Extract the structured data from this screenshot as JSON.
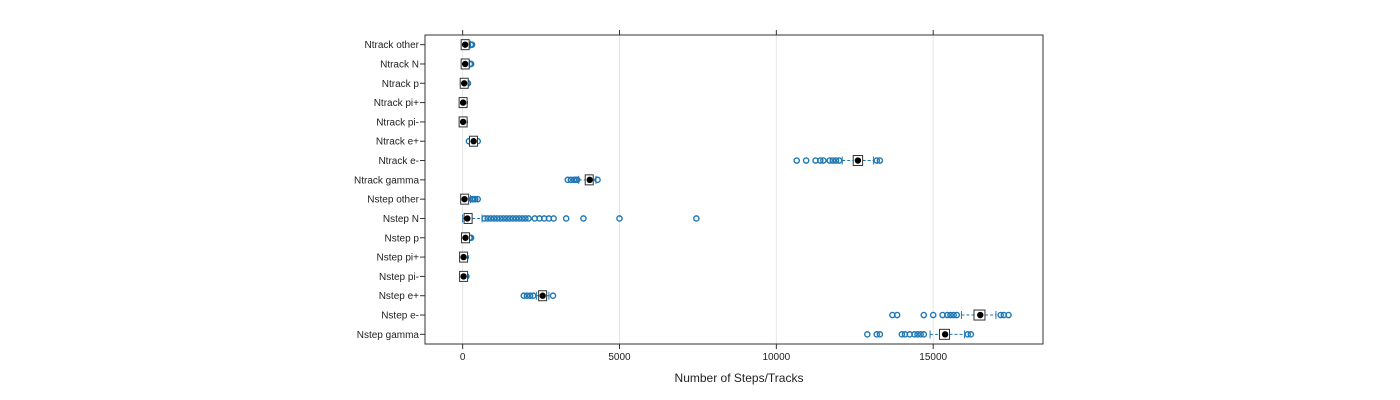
{
  "chart_data": {
    "type": "boxplot",
    "xlabel": "Number of Steps/Tracks",
    "xlim": [
      -1200,
      18500
    ],
    "xticks": [
      0,
      5000,
      10000,
      15000
    ],
    "xtick_labels": [
      "0",
      "5000",
      "10000",
      "15000"
    ],
    "grid": "vertical",
    "colors": {
      "point": "#1f77b4",
      "box": "#333333",
      "median": "#000000",
      "grid": "#e6e6e6",
      "frame": "#333333"
    },
    "categories": [
      "Ntrack other",
      "Ntrack N",
      "Ntrack p",
      "Ntrack pi+",
      "Ntrack pi-",
      "Ntrack e+",
      "Ntrack e-",
      "Ntrack gamma",
      "Nstep other",
      "Nstep N",
      "Nstep p",
      "Nstep pi+",
      "Nstep pi-",
      "Nstep e+",
      "Nstep e-",
      "Nstep gamma"
    ],
    "boxes": [
      {
        "category": "Ntrack other",
        "q1": 40,
        "median": 80,
        "q3": 120,
        "whisker_low": 0,
        "whisker_high": 250,
        "outliers": [
          260,
          280,
          300
        ]
      },
      {
        "category": "Ntrack N",
        "q1": 40,
        "median": 80,
        "q3": 120,
        "whisker_low": 0,
        "whisker_high": 220,
        "outliers": [
          230,
          250,
          270
        ]
      },
      {
        "category": "Ntrack p",
        "q1": 20,
        "median": 50,
        "q3": 80,
        "whisker_low": 0,
        "whisker_high": 140,
        "outliers": [
          150,
          170
        ]
      },
      {
        "category": "Ntrack pi+",
        "q1": 5,
        "median": 15,
        "q3": 25,
        "whisker_low": 0,
        "whisker_high": 50,
        "outliers": [
          60,
          70
        ]
      },
      {
        "category": "Ntrack pi-",
        "q1": 5,
        "median": 15,
        "q3": 25,
        "whisker_low": 0,
        "whisker_high": 50,
        "outliers": [
          60,
          70
        ]
      },
      {
        "category": "Ntrack e+",
        "q1": 300,
        "median": 350,
        "q3": 390,
        "whisker_low": 230,
        "whisker_high": 450,
        "outliers": [
          200,
          480
        ]
      },
      {
        "category": "Ntrack e-",
        "q1": 12450,
        "median": 12600,
        "q3": 12750,
        "whisker_low": 12100,
        "whisker_high": 13100,
        "outliers": [
          10650,
          10950,
          11250,
          11400,
          11500,
          11700,
          11800,
          11900,
          12000,
          13200,
          13300
        ]
      },
      {
        "category": "Ntrack gamma",
        "q1": 3950,
        "median": 4050,
        "q3": 4120,
        "whisker_low": 3700,
        "whisker_high": 4250,
        "outliers": [
          3350,
          3450,
          3550,
          3600,
          3650,
          4300
        ]
      },
      {
        "category": "Nstep other",
        "q1": 30,
        "median": 60,
        "q3": 100,
        "whisker_low": 0,
        "whisker_high": 250,
        "outliers": [
          300,
          350,
          400,
          480
        ]
      },
      {
        "category": "Nstep N",
        "q1": 50,
        "median": 150,
        "q3": 300,
        "whisker_low": 0,
        "whisker_high": 620,
        "outliers": [
          700,
          800,
          900,
          1000,
          1100,
          1200,
          1300,
          1400,
          1500,
          1600,
          1700,
          1800,
          1900,
          2000,
          2100,
          2300,
          2450,
          2600,
          2750,
          2900,
          3300,
          3850,
          5000,
          7450
        ]
      },
      {
        "category": "Nstep p",
        "q1": 40,
        "median": 90,
        "q3": 140,
        "whisker_low": 0,
        "whisker_high": 200,
        "outliers": [
          220,
          250,
          270
        ]
      },
      {
        "category": "Nstep pi+",
        "q1": 10,
        "median": 30,
        "q3": 50,
        "whisker_low": 0,
        "whisker_high": 80,
        "outliers": [
          90,
          100
        ]
      },
      {
        "category": "Nstep pi-",
        "q1": 10,
        "median": 30,
        "q3": 50,
        "whisker_low": 0,
        "whisker_high": 90,
        "outliers": [
          100,
          120
        ]
      },
      {
        "category": "Nstep e+",
        "q1": 2450,
        "median": 2550,
        "q3": 2650,
        "whisker_low": 2350,
        "whisker_high": 2750,
        "outliers": [
          1950,
          2050,
          2150,
          2250,
          2880
        ]
      },
      {
        "category": "Nstep e-",
        "q1": 16300,
        "median": 16500,
        "q3": 16650,
        "whisker_low": 15900,
        "whisker_high": 17000,
        "outliers": [
          13700,
          13850,
          14700,
          15000,
          15300,
          15450,
          15550,
          15650,
          15750,
          17150,
          17250,
          17400
        ]
      },
      {
        "category": "Nstep gamma",
        "q1": 15200,
        "median": 15380,
        "q3": 15520,
        "whisker_low": 14900,
        "whisker_high": 16000,
        "outliers": [
          12900,
          13200,
          13300,
          14000,
          14100,
          14250,
          14400,
          14500,
          14600,
          14700,
          16100,
          16200
        ]
      }
    ]
  }
}
